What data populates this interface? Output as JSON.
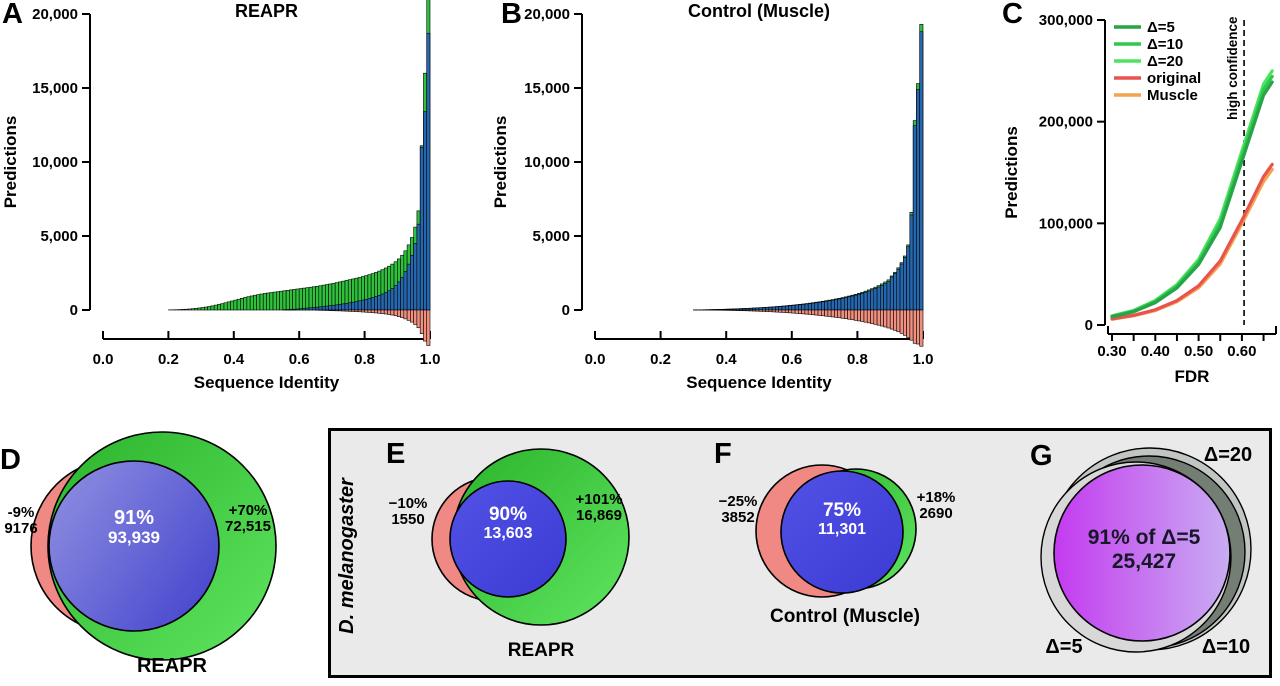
{
  "panels": {
    "A": {
      "letter": "A"
    },
    "B": {
      "letter": "B"
    },
    "C": {
      "letter": "C"
    },
    "D": {
      "letter": "D",
      "left_pct": "-9%",
      "left_value": "9176",
      "center_pct": "91%",
      "center_value": "93,939",
      "right_pct": "+70%",
      "right_value": "72,515",
      "caption": "REAPR"
    },
    "E": {
      "letter": "E",
      "left_pct": "−10%",
      "left_value": "1550",
      "center_pct": "90%",
      "center_value": "13,603",
      "right_pct": "+101%",
      "right_value": "16,869",
      "caption": "REAPR"
    },
    "F": {
      "letter": "F",
      "left_pct": "−25%",
      "left_value": "3852",
      "center_pct": "75%",
      "center_value": "11,301",
      "right_pct": "+18%",
      "right_value": "2690",
      "caption": "Control (Muscle)"
    },
    "G": {
      "letter": "G",
      "label_top_right": "Δ=20",
      "label_bottom_left": "Δ=5",
      "label_bottom_right": "Δ=10",
      "center_line1": "91% of Δ=5",
      "center_line2": "25,427"
    }
  },
  "group_box": {
    "label": "D. melanogaster"
  },
  "colors": {
    "hist_green": "#2FC13B",
    "hist_blue": "#2668B0",
    "hist_salmon": "#F2907F",
    "line_d5": "#27A348",
    "line_d10": "#2DC84D",
    "line_d20": "#4CE45F",
    "line_original": "#E8534E",
    "line_muscle": "#F2A44E",
    "venn_salmon": "#F08983",
    "venn_green": "#3CC23C",
    "venn_blue": "#4444DD",
    "venn_periwinkle": "#6A6AD6",
    "venn_purple": "#C43BEF",
    "gray_d20": "#C2C6C2",
    "gray_d10": "#747E74",
    "gray_d5": "#D8D8D8",
    "box_bg": "#EAEAEA"
  },
  "chart_data": [
    {
      "type": "bar",
      "panel": "A",
      "title": "REAPR",
      "xlabel": "Sequence Identity",
      "ylabel": "Predictions",
      "xlim": [
        0,
        1
      ],
      "ylim": [
        0,
        20000
      ],
      "xticks": [
        0,
        0.2,
        0.4,
        0.6,
        0.8,
        1
      ],
      "xtick_labels": [
        "0.0",
        "0.2",
        "0.4",
        "0.6",
        "0.8",
        "1.0"
      ],
      "yticks": [
        0,
        5000,
        10000,
        15000,
        20000
      ],
      "ytick_labels": [
        "0",
        "5,000",
        "10,000",
        "15,000",
        "20,000"
      ],
      "bin_width": 0.01,
      "series": [
        {
          "name": "green",
          "color": "#2FC13B",
          "x_start": 0.2,
          "values": [
            10,
            15,
            20,
            30,
            40,
            55,
            70,
            90,
            110,
            140,
            170,
            200,
            240,
            280,
            330,
            380,
            430,
            490,
            550,
            610,
            670,
            730,
            790,
            850,
            900,
            950,
            1000,
            1040,
            1080,
            1120,
            1150,
            1180,
            1210,
            1240,
            1270,
            1300,
            1330,
            1360,
            1390,
            1420,
            1450,
            1480,
            1510,
            1540,
            1570,
            1600,
            1640,
            1680,
            1720,
            1760,
            1800,
            1850,
            1900,
            1950,
            2000,
            2050,
            2100,
            2150,
            2200,
            2260,
            2320,
            2390,
            2460,
            2540,
            2630,
            2730,
            2840,
            2960,
            3100,
            3260,
            3450,
            3700,
            4000,
            4400,
            4900,
            5600,
            6700,
            11100,
            16000,
            21500
          ]
        },
        {
          "name": "blue",
          "color": "#2668B0",
          "x_start": 0.55,
          "values": [
            20,
            30,
            40,
            55,
            70,
            90,
            110,
            130,
            150,
            170,
            190,
            215,
            240,
            265,
            290,
            320,
            350,
            380,
            415,
            450,
            490,
            530,
            575,
            620,
            670,
            720,
            780,
            840,
            910,
            990,
            1080,
            1180,
            1300,
            1450,
            1650,
            1900,
            2200,
            2600,
            3100,
            3700,
            4500,
            5800,
            11000,
            13400,
            18700
          ]
        },
        {
          "name": "salmon",
          "color": "#F2907F",
          "x_start": 0.65,
          "values": [
            -15,
            -20,
            -25,
            -30,
            -40,
            -50,
            -55,
            -60,
            -70,
            -80,
            -90,
            -100,
            -110,
            -120,
            -135,
            -150,
            -165,
            -180,
            -200,
            -220,
            -245,
            -270,
            -300,
            -340,
            -390,
            -450,
            -520,
            -600,
            -700,
            -820,
            -980,
            -1200,
            -1600,
            -2100,
            -2400
          ]
        }
      ]
    },
    {
      "type": "bar",
      "panel": "B",
      "title": "Control (Muscle)",
      "xlabel": "Sequence Identity",
      "ylabel": "Predictions",
      "xlim": [
        0,
        1
      ],
      "ylim": [
        0,
        20000
      ],
      "xticks": [
        0,
        0.2,
        0.4,
        0.6,
        0.8,
        1
      ],
      "xtick_labels": [
        "0.0",
        "0.2",
        "0.4",
        "0.6",
        "0.8",
        "1.0"
      ],
      "yticks": [
        0,
        5000,
        10000,
        15000,
        20000
      ],
      "ytick_labels": [
        "0",
        "5,000",
        "10,000",
        "15,000",
        "20,000"
      ],
      "bin_width": 0.01,
      "series": [
        {
          "name": "green",
          "color": "#2FC13B",
          "x_start": 0.3,
          "values": [
            8,
            11,
            14,
            18,
            22,
            27,
            33,
            39,
            45,
            52,
            59,
            67,
            75,
            84,
            93,
            103,
            113,
            124,
            136,
            148,
            160,
            173,
            187,
            202,
            218,
            235,
            253,
            272,
            292,
            313,
            335,
            358,
            382,
            408,
            435,
            463,
            493,
            524,
            557,
            592,
            628,
            666,
            706,
            748,
            792,
            840,
            890,
            944,
            1001,
            1062,
            1128,
            1198,
            1274,
            1356,
            1445,
            1542,
            1648,
            1765,
            1894,
            2037,
            2300,
            2550,
            2850,
            3200,
            3650,
            4400,
            6600,
            12800,
            15300,
            19300
          ]
        },
        {
          "name": "blue",
          "color": "#2668B0",
          "x_start": 0.3,
          "values": [
            7,
            10,
            13,
            16,
            20,
            25,
            30,
            36,
            42,
            48,
            55,
            62,
            70,
            78,
            87,
            96,
            106,
            116,
            127,
            139,
            151,
            163,
            176,
            190,
            205,
            221,
            238,
            256,
            275,
            295,
            316,
            338,
            361,
            385,
            410,
            437,
            465,
            494,
            525,
            558,
            592,
            628,
            666,
            706,
            748,
            793,
            840,
            891,
            945,
            1003,
            1065,
            1131,
            1203,
            1280,
            1364,
            1456,
            1556,
            1666,
            1788,
            1923,
            2230,
            2470,
            2760,
            3110,
            3550,
            4280,
            6420,
            12450,
            14900,
            18800
          ]
        },
        {
          "name": "salmon",
          "color": "#F2907F",
          "x_start": 0.35,
          "values": [
            -8,
            -10,
            -13,
            -16,
            -20,
            -24,
            -28,
            -33,
            -38,
            -44,
            -50,
            -57,
            -64,
            -72,
            -80,
            -89,
            -98,
            -108,
            -118,
            -129,
            -141,
            -153,
            -166,
            -180,
            -195,
            -210,
            -226,
            -243,
            -261,
            -280,
            -300,
            -321,
            -343,
            -366,
            -390,
            -415,
            -441,
            -468,
            -496,
            -525,
            -556,
            -588,
            -622,
            -658,
            -696,
            -736,
            -778,
            -822,
            -869,
            -918,
            -970,
            -1025,
            -1084,
            -1147,
            -1215,
            -1290,
            -1375,
            -1470,
            -1580,
            -1710,
            -1860,
            -2040,
            -2250,
            -2300,
            -2450
          ]
        }
      ]
    },
    {
      "type": "line",
      "panel": "C",
      "title": "",
      "xlabel": "FDR",
      "ylabel": "Predictions",
      "xlim": [
        0.295,
        0.675
      ],
      "ylim": [
        0,
        300000
      ],
      "xticks": [
        0.3,
        0.35,
        0.4,
        0.45,
        0.5,
        0.55,
        0.6,
        0.65
      ],
      "xtick_labels": [
        "0.30",
        "",
        "0.40",
        "",
        "0.50",
        "",
        "0.60",
        ""
      ],
      "yticks": [
        0,
        100000,
        200000,
        300000
      ],
      "ytick_labels": [
        "0",
        "100,000",
        "200,000",
        "300,000"
      ],
      "legend_position": "top-left",
      "x": [
        0.3,
        0.35,
        0.4,
        0.45,
        0.5,
        0.55,
        0.6,
        0.65,
        0.67
      ],
      "series": [
        {
          "name": "Δ=5",
          "color": "#27A348",
          "values": [
            8000,
            13000,
            22000,
            36500,
            59500,
            96000,
            161000,
            226000,
            239000
          ]
        },
        {
          "name": "Δ=10",
          "color": "#2DC84D",
          "values": [
            8600,
            13700,
            23200,
            38200,
            62000,
            100500,
            166000,
            231500,
            244500
          ]
        },
        {
          "name": "Δ=20",
          "color": "#4CE45F",
          "values": [
            9100,
            14300,
            24200,
            39800,
            64500,
            104500,
            171000,
            237000,
            250000
          ]
        },
        {
          "name": "original",
          "color": "#E8534E",
          "values": [
            6000,
            9500,
            15000,
            24000,
            38500,
            63000,
            103000,
            146000,
            158000
          ]
        },
        {
          "name": "Muscle",
          "color": "#F2A44E",
          "values": [
            5600,
            9000,
            14200,
            22800,
            36600,
            60000,
            99500,
            141000,
            153000
          ]
        }
      ],
      "annotation": {
        "label": "high confidence",
        "x": 0.605
      }
    }
  ]
}
